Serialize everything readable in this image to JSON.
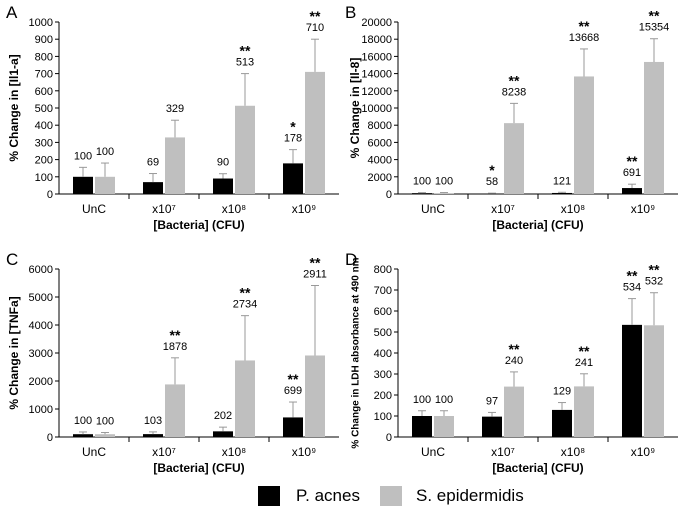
{
  "colors": {
    "p_acnes": "#000000",
    "s_epidermidis": "#bfbfbf"
  },
  "legend": {
    "series": [
      "P. acnes",
      "S. epidermidis"
    ]
  },
  "chart_data": [
    {
      "type": "bar",
      "panel_letter": "A",
      "title": "",
      "ylabel": "% Change in [Il1-a]",
      "xlabel": "[Bacteria] (CFU)",
      "ylim": [
        0,
        1000
      ],
      "yticks": [
        "0",
        "100",
        "200",
        "300",
        "400",
        "500",
        "600",
        "700",
        "800",
        "900",
        "1000"
      ],
      "categories": [
        "UnC",
        "x10⁷",
        "x10⁸",
        "x10⁹"
      ],
      "grid": false,
      "legend_position": "bottom",
      "series": [
        {
          "name": "P. acnes",
          "values": [
            100,
            69,
            90,
            178
          ],
          "errors": [
            55,
            50,
            28,
            80
          ],
          "labels": [
            "100",
            "69",
            "90",
            "178"
          ],
          "significance": [
            "",
            "",
            "",
            "*"
          ]
        },
        {
          "name": "S. epidermidis",
          "values": [
            100,
            329,
            513,
            710
          ],
          "errors": [
            80,
            100,
            187,
            190
          ],
          "labels": [
            "100",
            "329",
            "513",
            "710"
          ],
          "significance": [
            "",
            "",
            "**",
            "**"
          ]
        }
      ]
    },
    {
      "type": "bar",
      "panel_letter": "B",
      "title": "",
      "ylabel": "% Change in [Il-8]",
      "xlabel": "[Bacteria] (CFU)",
      "ylim": [
        0,
        20000
      ],
      "yticks": [
        "0",
        "2000",
        "4000",
        "6000",
        "8000",
        "10000",
        "12000",
        "14000",
        "16000",
        "18000",
        "20000"
      ],
      "categories": [
        "UnC",
        "x10⁷",
        "x10⁸",
        "x10⁹"
      ],
      "grid": false,
      "legend_position": "bottom",
      "series": [
        {
          "name": "P. acnes",
          "values": [
            100,
            58,
            121,
            691
          ],
          "errors": [
            60,
            40,
            80,
            450
          ],
          "labels": [
            "100",
            "58",
            "121",
            "691"
          ],
          "significance": [
            "",
            "*",
            "",
            "**"
          ]
        },
        {
          "name": "S. epidermidis",
          "values": [
            100,
            8238,
            13668,
            15354
          ],
          "errors": [
            70,
            2300,
            3200,
            2700
          ],
          "labels": [
            "100",
            "8238",
            "13668",
            "15354"
          ],
          "significance": [
            "",
            "**",
            "**",
            "**"
          ]
        }
      ]
    },
    {
      "type": "bar",
      "panel_letter": "C",
      "title": "",
      "ylabel": "% Change in [TNFa]",
      "xlabel": "[Bacteria] (CFU)",
      "ylim": [
        0,
        6000
      ],
      "yticks": [
        "0",
        "1000",
        "2000",
        "3000",
        "4000",
        "5000",
        "6000"
      ],
      "categories": [
        "UnC",
        "x10⁷",
        "x10⁸",
        "x10⁹"
      ],
      "grid": false,
      "legend_position": "bottom",
      "series": [
        {
          "name": "P. acnes",
          "values": [
            100,
            103,
            202,
            699
          ],
          "errors": [
            80,
            80,
            150,
            550
          ],
          "labels": [
            "100",
            "103",
            "202",
            "699"
          ],
          "significance": [
            "",
            "",
            "",
            "**"
          ]
        },
        {
          "name": "S. epidermidis",
          "values": [
            100,
            1878,
            2734,
            2911
          ],
          "errors": [
            60,
            950,
            1600,
            2500
          ],
          "labels": [
            "100",
            "1878",
            "2734",
            "2911"
          ],
          "significance": [
            "",
            "**",
            "**",
            "**"
          ]
        }
      ]
    },
    {
      "type": "bar",
      "panel_letter": "D",
      "title": "",
      "ylabel": "% Change in LDH absorbance at 490 nm",
      "xlabel": "[Bacteria] (CFU)",
      "ylim": [
        0,
        800
      ],
      "yticks": [
        "0",
        "100",
        "200",
        "300",
        "400",
        "500",
        "600",
        "700",
        "800"
      ],
      "categories": [
        "UnC",
        "x10⁷",
        "x10⁸",
        "x10⁹"
      ],
      "grid": false,
      "legend_position": "bottom",
      "series": [
        {
          "name": "P. acnes",
          "values": [
            100,
            97,
            129,
            534
          ],
          "errors": [
            25,
            20,
            35,
            125
          ],
          "labels": [
            "100",
            "97",
            "129",
            "534"
          ],
          "significance": [
            "",
            "",
            "",
            "**"
          ]
        },
        {
          "name": "S. epidermidis",
          "values": [
            100,
            240,
            241,
            532
          ],
          "errors": [
            25,
            70,
            60,
            155
          ],
          "labels": [
            "100",
            "240",
            "241",
            "532"
          ],
          "significance": [
            "",
            "**",
            "**",
            "**"
          ]
        }
      ]
    }
  ]
}
